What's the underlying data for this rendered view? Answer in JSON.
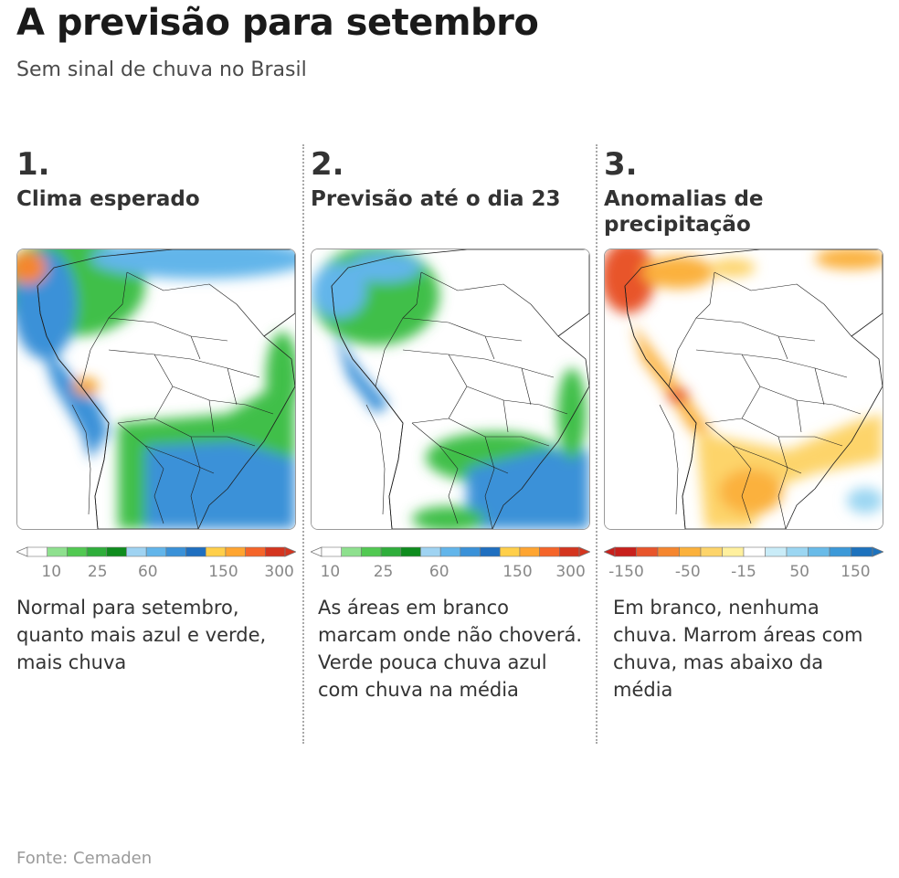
{
  "title": "A previsão para setembro",
  "subtitle": "Sem sinal de chuva no Brasil",
  "panels": [
    {
      "number": "1.",
      "heading": "Clima esperado",
      "map_style": "expected-rain",
      "colorbar_colors": [
        "#ffffff",
        "#8ee08e",
        "#52c952",
        "#2fae3b",
        "#0f8c1e",
        "#9fd3f2",
        "#62b5ea",
        "#3a91d8",
        "#1f6fc0",
        "#ffcf4a",
        "#ffa531",
        "#f5652a",
        "#d4351f"
      ],
      "ticks": [
        {
          "label": "10",
          "pos": 0.125
        },
        {
          "label": "25",
          "pos": 0.29
        },
        {
          "label": "60",
          "pos": 0.47
        },
        {
          "label": "150",
          "pos": 0.74
        },
        {
          "label": "300",
          "pos": 0.94
        }
      ],
      "description": "Normal para setembro, quanto mais azul e verde, mais chuva"
    },
    {
      "number": "2.",
      "heading": "Previsão até o dia 23",
      "map_style": "forecast",
      "colorbar_colors": [
        "#ffffff",
        "#8ee08e",
        "#52c952",
        "#2fae3b",
        "#0f8c1e",
        "#9fd3f2",
        "#62b5ea",
        "#3a91d8",
        "#1f6fc0",
        "#ffcf4a",
        "#ffa531",
        "#f5652a",
        "#d4351f"
      ],
      "ticks": [
        {
          "label": "10",
          "pos": 0.07
        },
        {
          "label": "25",
          "pos": 0.26
        },
        {
          "label": "60",
          "pos": 0.46
        },
        {
          "label": "150",
          "pos": 0.74
        },
        {
          "label": "300",
          "pos": 0.93
        }
      ],
      "description": "As áreas em branco marcam onde não choverá. Verde pouca chuva azul com chuva na média"
    },
    {
      "number": "3.",
      "heading": "Anomalias de precipitação",
      "map_style": "anomaly",
      "colorbar_colors": [
        "#c8201c",
        "#e8552b",
        "#f5862f",
        "#fbb13c",
        "#fdd46a",
        "#fff09e",
        "#ffffff",
        "#c9ecf8",
        "#9bd6f2",
        "#69bbe8",
        "#3c99d8",
        "#1d72bd"
      ],
      "ticks": [
        {
          "label": "-150",
          "pos": 0.08
        },
        {
          "label": "-50",
          "pos": 0.3
        },
        {
          "label": "-15",
          "pos": 0.5
        },
        {
          "label": "50",
          "pos": 0.7
        },
        {
          "label": "150",
          "pos": 0.9
        }
      ],
      "description": "Em branco, nenhuma chuva. Marrom áreas com chuva, mas abaixo da média"
    }
  ],
  "source": "Fonte: Cemaden"
}
